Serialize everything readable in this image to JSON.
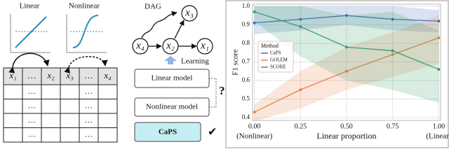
{
  "diagram": {
    "plots": {
      "linear": "Linear",
      "nonlinear": "Nonlinear"
    },
    "table": {
      "header": [
        "x₁",
        "…",
        "x₂",
        "x₃",
        "…",
        "x₄"
      ],
      "rows": [
        [
          "…",
          "…"
        ],
        [
          "…",
          "…"
        ],
        [
          "…",
          "…"
        ],
        [
          "…",
          "…"
        ]
      ]
    },
    "dag": {
      "title": "DAG",
      "nodes": [
        "x₃",
        "x₄",
        "x₂",
        "x₁"
      ]
    },
    "learning": "Learning",
    "models": [
      "Linear model",
      "Nonlinear model",
      "CaPS"
    ],
    "question": "?",
    "check": "✔"
  },
  "chart_data": {
    "type": "line",
    "x_label": "Linear proportion",
    "y_label": "F1 score",
    "x": [
      0,
      0.25,
      0.5,
      0.75,
      1.0
    ],
    "xlim": [
      -0.01,
      1.01
    ],
    "xticks": [
      {
        "value": 0,
        "label": "0.00"
      },
      0.25,
      {
        "value": 0.5,
        "label": "0.50"
      },
      0.75,
      {
        "value": 1,
        "label": "1.00"
      }
    ],
    "annotations": [
      {
        "text": "(Nonlinear)",
        "x": 0
      },
      {
        "text": "(Linear)",
        "x": 1
      }
    ],
    "ylim": [
      0.385,
      1.011
    ],
    "yticks": [
      0.4,
      0.5,
      0.6,
      0.7,
      0.8,
      0.9,
      {
        "value": 1,
        "label": "1.0"
      }
    ],
    "grid": true,
    "legend_title": "Method",
    "legend_position": "center-left",
    "series": [
      {
        "name": "CaPS",
        "color": "#3b6fb5",
        "values": [
          0.91,
          0.93,
          0.95,
          0.93,
          0.92
        ],
        "lower": [
          0.85,
          0.87,
          0.9,
          0.87,
          0.86
        ],
        "upper": [
          1.0,
          1.0,
          1.0,
          1.0,
          0.98
        ]
      },
      {
        "name": "GOLEM",
        "color": "#e8834a",
        "values": [
          0.43,
          0.55,
          0.65,
          0.74,
          0.83
        ],
        "lower": [
          0.38,
          0.45,
          0.55,
          0.62,
          0.69
        ],
        "upper": [
          0.47,
          0.65,
          0.78,
          0.86,
          0.95
        ]
      },
      {
        "name": "SCORE",
        "color": "#3a9e6a",
        "values": [
          0.97,
          0.89,
          0.78,
          0.76,
          0.66
        ],
        "lower": [
          0.92,
          0.73,
          0.6,
          0.55,
          0.48
        ],
        "upper": [
          1.0,
          1.0,
          0.95,
          0.97,
          0.87
        ]
      }
    ]
  }
}
